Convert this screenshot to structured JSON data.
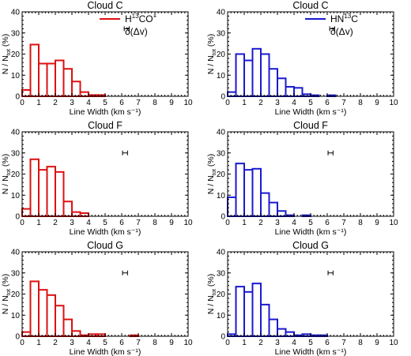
{
  "colors": {
    "red": "#dd1010",
    "blue": "#1a1ad0",
    "axis": "#000000"
  },
  "chart_data": [
    {
      "type": "bar",
      "title": "Cloud C",
      "xlabel": "Line Width (km s⁻¹)",
      "ylabel": "N / N_tot (%)",
      "xlim": [
        0,
        10
      ],
      "ylim": [
        0,
        40
      ],
      "bin_width": 0.5,
      "color": "red",
      "bins": [
        0,
        0.5,
        1,
        1.5,
        2,
        2.5,
        3,
        3.5,
        4,
        4.5,
        5,
        5.5,
        6,
        6.5,
        7,
        7.5,
        8,
        8.5,
        9,
        9.5
      ],
      "values": [
        3,
        24.5,
        15.5,
        15.5,
        17,
        13,
        7,
        2,
        0.6,
        0.6,
        0,
        0,
        0,
        0,
        0,
        0,
        0,
        0,
        0,
        0
      ],
      "legend": {
        "line": "H¹³CO⁺",
        "err": "δ(Δv)",
        "marker": "H"
      },
      "err_bar": {
        "x": 6.3,
        "y": 32,
        "half_width": 0.15
      }
    },
    {
      "type": "bar",
      "title": "Cloud C",
      "xlabel": "Line Width (km s⁻¹)",
      "ylabel": "N / N_tot (%)",
      "xlim": [
        0,
        10
      ],
      "ylim": [
        0,
        40
      ],
      "bin_width": 0.5,
      "color": "blue",
      "bins": [
        0,
        0.5,
        1,
        1.5,
        2,
        2.5,
        3,
        3.5,
        4,
        4.5,
        5,
        5.5,
        6,
        6.5,
        7,
        7.5,
        8,
        8.5,
        9,
        9.5
      ],
      "values": [
        2,
        20,
        17,
        22.5,
        20,
        13,
        8.5,
        4.5,
        4,
        1,
        0.5,
        0,
        0.5,
        0,
        0,
        0,
        0,
        0,
        0,
        0
      ],
      "legend": {
        "line": "HN¹³C",
        "err": "δ(Δv)",
        "marker": "H"
      },
      "err_bar": {
        "x": 6.3,
        "y": 32,
        "half_width": 0.15
      }
    },
    {
      "type": "bar",
      "title": "Cloud F",
      "xlabel": "Line Width (km s⁻¹)",
      "ylabel": "N / N_tot (%)",
      "xlim": [
        0,
        10
      ],
      "ylim": [
        0,
        40
      ],
      "bin_width": 0.5,
      "color": "red",
      "bins": [
        0,
        0.5,
        1,
        1.5,
        2,
        2.5,
        3,
        3.5,
        4,
        4.5,
        5,
        5.5,
        6,
        6.5,
        7,
        7.5,
        8,
        8.5,
        9,
        9.5
      ],
      "values": [
        3.5,
        27,
        22,
        23.5,
        21,
        7,
        2,
        1.5,
        0,
        0,
        0,
        0,
        0,
        0,
        0,
        0,
        0,
        0,
        0,
        0
      ],
      "legend": {
        "marker": "H"
      },
      "err_bar": {
        "x": 6.2,
        "y": 30,
        "half_width": 0.15
      }
    },
    {
      "type": "bar",
      "title": "Cloud F",
      "xlabel": "Line Width (km s⁻¹)",
      "ylabel": "N / N_tot (%)",
      "xlim": [
        0,
        10
      ],
      "ylim": [
        0,
        40
      ],
      "bin_width": 0.5,
      "color": "blue",
      "bins": [
        0,
        0.5,
        1,
        1.5,
        2,
        2.5,
        3,
        3.5,
        4,
        4.5,
        5,
        5.5,
        6,
        6.5,
        7,
        7.5,
        8,
        8.5,
        9,
        9.5
      ],
      "values": [
        9,
        25,
        22,
        22.5,
        11,
        6.5,
        2.5,
        0.5,
        0,
        0.5,
        0,
        0,
        0,
        0,
        0,
        0,
        0,
        0,
        0,
        0
      ],
      "legend": {
        "marker": "H"
      },
      "err_bar": {
        "x": 6.2,
        "y": 30,
        "half_width": 0.15
      }
    },
    {
      "type": "bar",
      "title": "Cloud G",
      "xlabel": "Line Width (km s⁻¹)",
      "ylabel": "N / N_tot (%)",
      "xlim": [
        0,
        10
      ],
      "ylim": [
        0,
        40
      ],
      "bin_width": 0.5,
      "color": "red",
      "bins": [
        0,
        0.5,
        1,
        1.5,
        2,
        2.5,
        3,
        3.5,
        4,
        4.5,
        5,
        5.5,
        6,
        6.5,
        7,
        7.5,
        8,
        8.5,
        9,
        9.5
      ],
      "values": [
        2,
        26,
        22,
        19.5,
        14.5,
        8,
        2.5,
        0.5,
        1,
        1,
        0,
        0,
        0,
        0.5,
        0,
        0,
        0,
        0,
        0,
        0
      ],
      "legend": {
        "marker": "H"
      },
      "err_bar": {
        "x": 6.2,
        "y": 30,
        "half_width": 0.15
      }
    },
    {
      "type": "bar",
      "title": "Cloud G",
      "xlabel": "Line Width (km s⁻¹)",
      "ylabel": "N / N_tot (%)",
      "xlim": [
        0,
        10
      ],
      "ylim": [
        0,
        40
      ],
      "bin_width": 0.5,
      "color": "blue",
      "bins": [
        0,
        0.5,
        1,
        1.5,
        2,
        2.5,
        3,
        3.5,
        4,
        4.5,
        5,
        5.5,
        6,
        6.5,
        7,
        7.5,
        8,
        8.5,
        9,
        9.5
      ],
      "values": [
        1,
        23.5,
        21,
        25,
        15,
        8,
        3.5,
        2,
        0.5,
        1,
        0.5,
        0.5,
        0,
        0,
        0,
        0,
        0,
        0,
        0,
        0
      ],
      "legend": {
        "marker": "H"
      },
      "err_bar": {
        "x": 6.2,
        "y": 30,
        "half_width": 0.15
      }
    }
  ]
}
